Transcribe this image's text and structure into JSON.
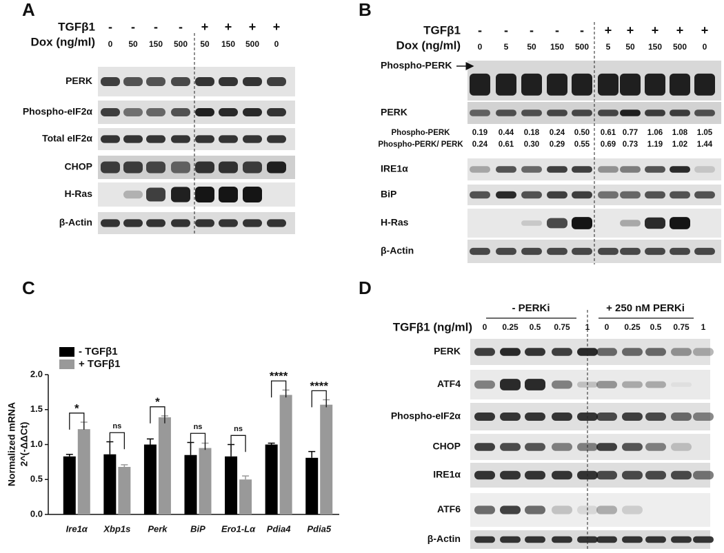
{
  "panel_a": {
    "label": "A",
    "header_rows": [
      {
        "name": "TGFβ1",
        "lanes": [
          "-",
          "-",
          "-",
          "-",
          "+",
          "+",
          "+",
          "+"
        ]
      },
      {
        "name": "Dox (ng/ml)",
        "lanes": [
          "0",
          "50",
          "150",
          "500",
          "50",
          "150",
          "500",
          "0"
        ]
      }
    ],
    "blots": [
      "PERK",
      "Phospho-eIF2α",
      "Total eIF2α",
      "CHOP",
      "H-Ras",
      "β-Actin"
    ]
  },
  "panel_b": {
    "label": "B",
    "header_rows": [
      {
        "name": "TGFβ1",
        "lanes": [
          "-",
          "-",
          "-",
          "-",
          "-",
          "+",
          "+",
          "+",
          "+",
          "+"
        ]
      },
      {
        "name": "Dox (ng/ml)",
        "lanes": [
          "0",
          "5",
          "50",
          "150",
          "500",
          "5",
          "50",
          "150",
          "500",
          "0"
        ]
      }
    ],
    "blots": [
      "Phospho-PERK",
      "PERK",
      "IRE1α",
      "BiP",
      "H-Ras",
      "β-Actin"
    ],
    "quantification": [
      {
        "name": "Phospho-PERK",
        "values": [
          "0.19",
          "0.44",
          "0.18",
          "0.24",
          "0.50",
          "0.61",
          "0.77",
          "1.06",
          "1.08",
          "1.05"
        ]
      },
      {
        "name": "Phospho-PERK/ PERK",
        "values": [
          "0.24",
          "0.61",
          "0.30",
          "0.29",
          "0.55",
          "0.69",
          "0.73",
          "1.19",
          "1.02",
          "1.44"
        ]
      }
    ]
  },
  "chart_data": {
    "type": "bar",
    "label": "C",
    "y_label": [
      "Normalized mRNA",
      "2^(-ΔΔCt)"
    ],
    "categories": [
      "Ire1α",
      "Xbp1s",
      "Perk",
      "BiP",
      "Ero1-Lα",
      "Pdia4",
      "Pdia5"
    ],
    "series": [
      {
        "name": "- TGFβ1",
        "color": "#000000",
        "values": [
          0.83,
          0.86,
          1.0,
          0.85,
          0.83,
          1.0,
          0.81
        ],
        "errors": [
          0.03,
          0.18,
          0.08,
          0.18,
          0.17,
          0.02,
          0.09
        ]
      },
      {
        "name": "+ TGFβ1",
        "color": "#999999",
        "values": [
          1.22,
          0.68,
          1.39,
          0.95,
          0.5,
          1.71,
          1.57
        ],
        "errors": [
          0.1,
          0.03,
          0.02,
          0.07,
          0.05,
          0.07,
          0.07
        ]
      }
    ],
    "annotations": [
      "*",
      "ns",
      "*",
      "ns",
      "ns",
      "****",
      "****"
    ],
    "ylim": [
      0,
      2
    ],
    "yticks": [
      {
        "value": 0,
        "label": "0.0"
      },
      {
        "value": 0.5,
        "label": "0.5"
      },
      {
        "value": 1,
        "label": "1.0"
      },
      {
        "value": 1.5,
        "label": "1.5"
      },
      {
        "value": 2,
        "label": "2.0"
      }
    ],
    "legend": "top-left"
  },
  "panel_d": {
    "label": "D",
    "groups": [
      "- PERKi",
      "+ 250 nM PERKi"
    ],
    "header_rows": [
      {
        "name": "TGFβ1 (ng/ml)",
        "lanes": [
          "0",
          "0.25",
          "0.5",
          "0.75",
          "1",
          "0",
          "0.25",
          "0.5",
          "0.75",
          "1"
        ]
      }
    ],
    "blots": [
      "PERK",
      "ATF4",
      "Phospho-eIF2α",
      "CHOP",
      "IRE1α",
      "ATF6",
      "β-Actin"
    ]
  }
}
